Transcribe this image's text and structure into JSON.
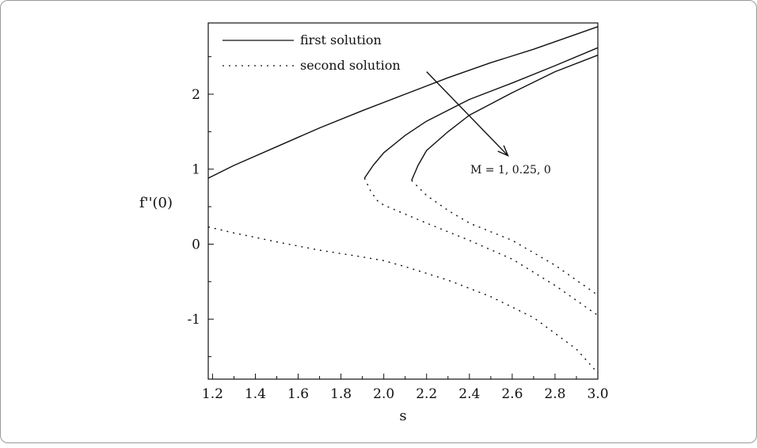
{
  "chart_data": {
    "type": "line",
    "title": "",
    "xlabel": "s",
    "ylabel": "f''(0)",
    "xlim": [
      1.18,
      3.0
    ],
    "ylim": [
      -1.8,
      2.95
    ],
    "grid": false,
    "legend_position": "top-left",
    "x_ticks": [
      "1.2",
      "1.4",
      "1.6",
      "1.8",
      "2.0",
      "2.2",
      "2.4",
      "2.6",
      "2.8",
      "3.0"
    ],
    "y_ticks": [
      "2",
      "1",
      "0",
      "-1"
    ],
    "legend": [
      {
        "label": "first solution",
        "style": "solid"
      },
      {
        "label": "second solution",
        "style": "dotted"
      }
    ],
    "annotation": "M = 1, 0.25, 0",
    "series": [
      {
        "style": "solid",
        "points": [
          [
            1.18,
            0.88
          ],
          [
            1.3,
            1.05
          ],
          [
            1.5,
            1.3
          ],
          [
            1.7,
            1.55
          ],
          [
            1.9,
            1.78
          ],
          [
            2.1,
            2.0
          ],
          [
            2.3,
            2.22
          ],
          [
            2.5,
            2.42
          ],
          [
            2.7,
            2.6
          ],
          [
            2.9,
            2.8
          ],
          [
            3.0,
            2.9
          ]
        ]
      },
      {
        "style": "dotted",
        "points": [
          [
            1.18,
            0.23
          ],
          [
            1.3,
            0.15
          ],
          [
            1.5,
            0.03
          ],
          [
            1.7,
            -0.08
          ],
          [
            1.9,
            -0.17
          ],
          [
            2.0,
            -0.22
          ],
          [
            2.1,
            -0.3
          ],
          [
            2.3,
            -0.48
          ],
          [
            2.5,
            -0.7
          ],
          [
            2.7,
            -0.98
          ],
          [
            2.9,
            -1.4
          ],
          [
            3.0,
            -1.72
          ]
        ]
      },
      {
        "style": "solid",
        "points": [
          [
            1.91,
            0.88
          ],
          [
            1.95,
            1.05
          ],
          [
            2.0,
            1.22
          ],
          [
            2.1,
            1.45
          ],
          [
            2.2,
            1.64
          ],
          [
            2.4,
            1.93
          ],
          [
            2.6,
            2.15
          ],
          [
            2.8,
            2.38
          ],
          [
            3.0,
            2.62
          ]
        ]
      },
      {
        "style": "dotted",
        "points": [
          [
            1.91,
            0.88
          ],
          [
            1.94,
            0.7
          ],
          [
            1.97,
            0.58
          ],
          [
            2.0,
            0.52
          ],
          [
            2.2,
            0.28
          ],
          [
            2.4,
            0.05
          ],
          [
            2.6,
            -0.2
          ],
          [
            2.8,
            -0.55
          ],
          [
            3.0,
            -0.95
          ]
        ]
      },
      {
        "style": "solid",
        "points": [
          [
            2.13,
            0.85
          ],
          [
            2.16,
            1.05
          ],
          [
            2.2,
            1.25
          ],
          [
            2.3,
            1.5
          ],
          [
            2.4,
            1.72
          ],
          [
            2.6,
            2.02
          ],
          [
            2.8,
            2.3
          ],
          [
            3.0,
            2.52
          ]
        ]
      },
      {
        "style": "dotted",
        "points": [
          [
            2.13,
            0.85
          ],
          [
            2.2,
            0.65
          ],
          [
            2.3,
            0.45
          ],
          [
            2.4,
            0.28
          ],
          [
            2.6,
            0.05
          ],
          [
            2.8,
            -0.28
          ],
          [
            3.0,
            -0.68
          ]
        ]
      }
    ],
    "arrow": {
      "from": [
        2.2,
        2.3
      ],
      "to": [
        2.58,
        1.18
      ]
    }
  }
}
